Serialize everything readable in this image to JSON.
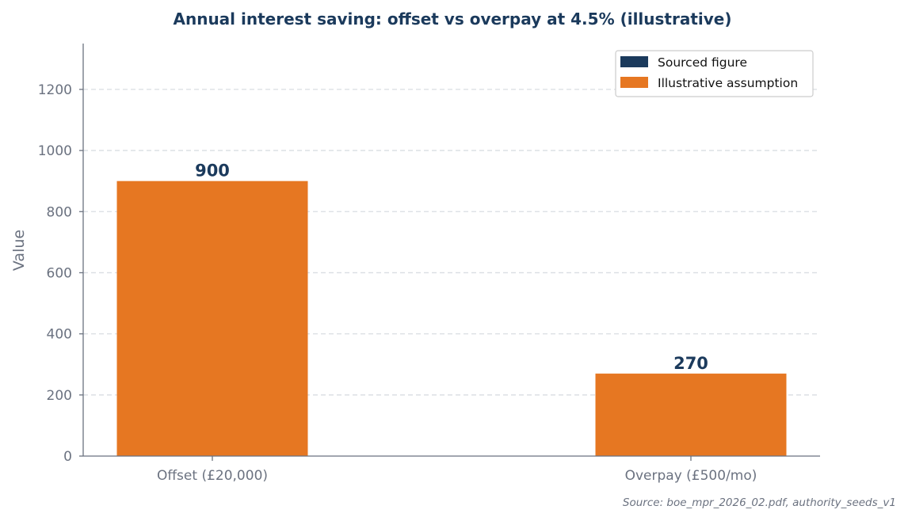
{
  "chart_data": {
    "type": "bar",
    "title": "Annual interest saving: offset vs overpay at 4.5% (illustrative)",
    "xlabel": "",
    "ylabel": "Value",
    "categories": [
      "Offset (£20,000)",
      "Overpay (£500/mo)"
    ],
    "values": [
      900,
      270
    ],
    "value_labels": [
      "900",
      "270"
    ],
    "bar_colors": [
      "#e67722",
      "#e67722"
    ],
    "ylim": [
      0,
      1350
    ],
    "yticks": [
      0,
      200,
      400,
      600,
      800,
      1000,
      1200
    ],
    "grid": true,
    "legend": {
      "placement": "top-right",
      "entries": [
        {
          "label": "Sourced figure",
          "color": "#1b3a5c"
        },
        {
          "label": "Illustrative assumption",
          "color": "#e67722"
        }
      ]
    },
    "source_note": "Source: boe_mpr_2026_02.pdf, authority_seeds_v1"
  }
}
